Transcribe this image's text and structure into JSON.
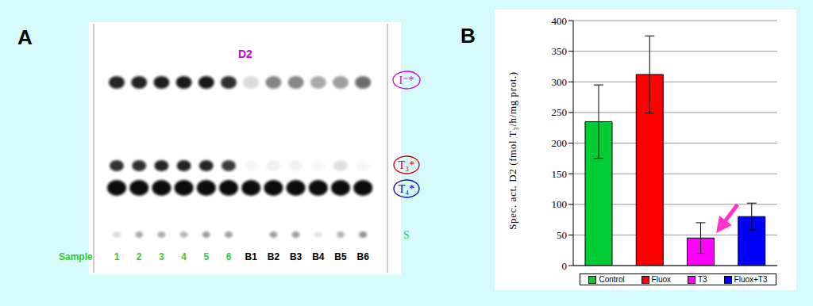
{
  "panel_a": {
    "label": "A",
    "title": "D2",
    "sample_label": "Sample",
    "lanes": [
      {
        "label": "1",
        "color": "#33cc33"
      },
      {
        "label": "2",
        "color": "#33cc33"
      },
      {
        "label": "3",
        "color": "#33cc33"
      },
      {
        "label": "4",
        "color": "#33cc33"
      },
      {
        "label": "5",
        "color": "#33cc33"
      },
      {
        "label": "6",
        "color": "#33cc33"
      },
      {
        "label": "B1",
        "color": "#000000"
      },
      {
        "label": "B2",
        "color": "#000000"
      },
      {
        "label": "B3",
        "color": "#000000"
      },
      {
        "label": "B4",
        "color": "#000000"
      },
      {
        "label": "B5",
        "color": "#000000"
      },
      {
        "label": "B6",
        "color": "#000000"
      }
    ],
    "bands": [
      {
        "label": "I⁻*",
        "color": "#cc00cc",
        "intensity": [
          0.9,
          0.9,
          0.92,
          0.95,
          0.95,
          0.85,
          0.15,
          0.5,
          0.5,
          0.35,
          0.4,
          0.6
        ]
      },
      {
        "label": "T₃*",
        "color": "#cc0000",
        "intensity": [
          0.85,
          0.85,
          0.9,
          0.9,
          0.9,
          0.8,
          0.03,
          0.05,
          0.05,
          0.03,
          0.12,
          0.03
        ]
      },
      {
        "label": "T₄*",
        "color": "#0000cc",
        "intensity": [
          1,
          1,
          1,
          1,
          1,
          1,
          1,
          1,
          1,
          1,
          1,
          1
        ]
      },
      {
        "label": "S",
        "color": "#33cc33",
        "intensity": [
          0.15,
          0.35,
          0.35,
          0.3,
          0.4,
          0.4,
          0.0,
          0.4,
          0.4,
          0.1,
          0.3,
          0.45
        ]
      }
    ]
  },
  "chart_data": {
    "type": "bar",
    "panel_label": "B",
    "y_label": "Spec. act. D2 (fmol T₃/h/mg prot.)",
    "categories": [
      "Control",
      "Fluox",
      "T3",
      "Fluox+T3"
    ],
    "values": [
      235,
      312,
      45,
      80
    ],
    "errors": [
      60,
      63,
      25,
      22
    ],
    "colors": [
      "#00cc33",
      "#ff0000",
      "#ff00ff",
      "#0000ff"
    ],
    "ylim": [
      0,
      400
    ],
    "yticks": [
      0,
      50,
      100,
      150,
      200,
      250,
      300,
      350,
      400
    ],
    "grid": true,
    "tick_labels": "y",
    "legend": "bottom"
  }
}
